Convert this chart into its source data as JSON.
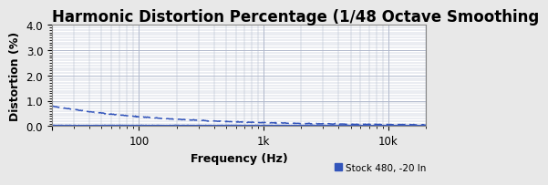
{
  "title": "Harmonic Distortion Percentage (1/48 Octave Smoothing",
  "xlabel": "Frequency (Hz)",
  "ylabel": "Distortion (%)",
  "ylim": [
    0.0,
    4.0
  ],
  "xlim": [
    20,
    20000
  ],
  "yticks": [
    0.0,
    1.0,
    2.0,
    3.0,
    4.0
  ],
  "ytick_labels": [
    "0.0",
    "1.0",
    "2.0",
    "3.0",
    "4.0"
  ],
  "background_color": "#e8e8e8",
  "plot_bg_color": "#ffffff",
  "grid_color": "#b0b8cc",
  "line_color": "#3355bb",
  "legend_label": "Stock 480, -20 In",
  "legend_color": "#3355bb",
  "title_fontsize": 12,
  "axis_label_fontsize": 9,
  "tick_fontsize": 8.5
}
